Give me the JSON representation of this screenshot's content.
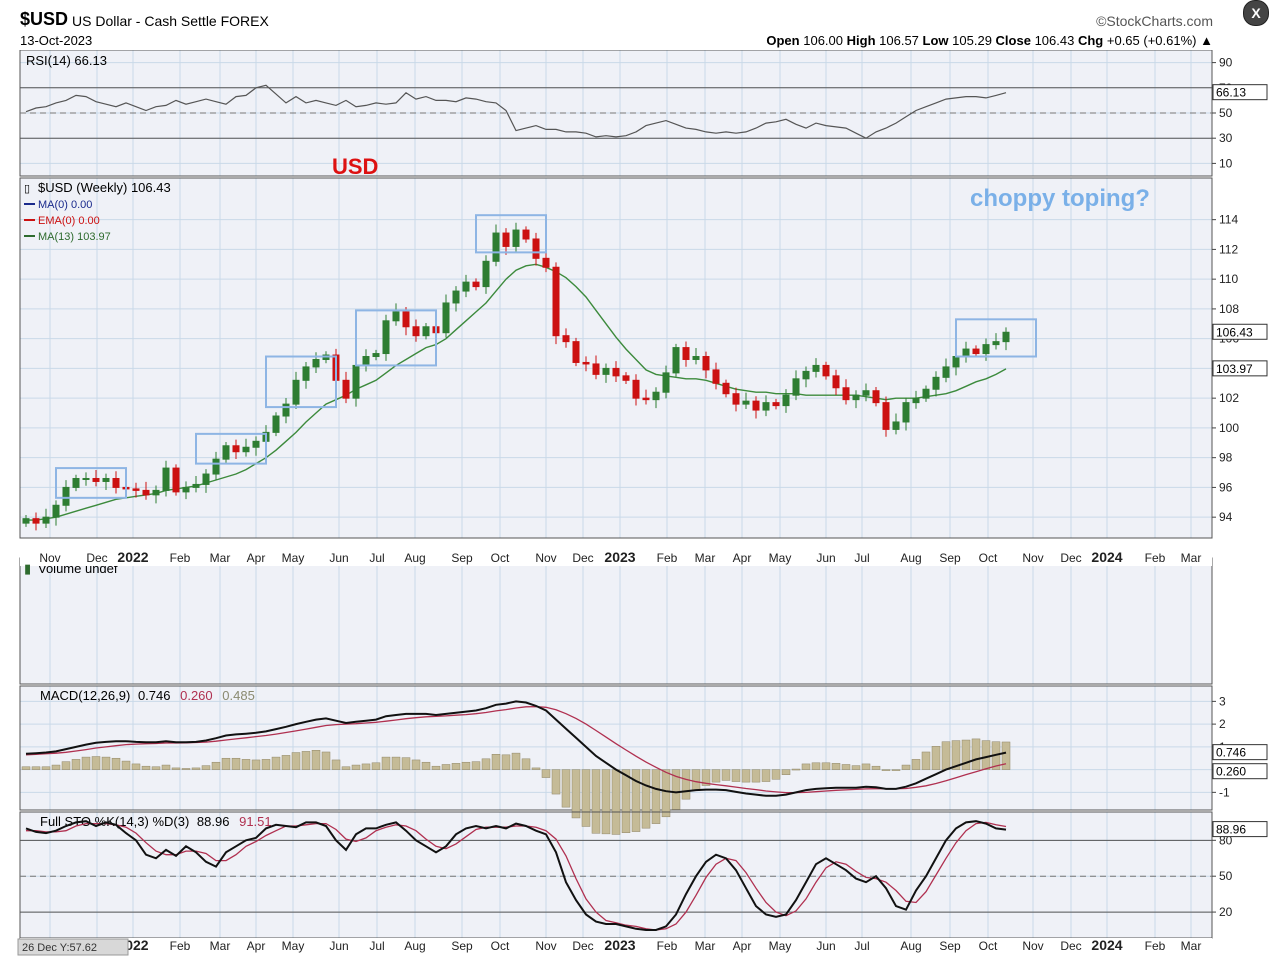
{
  "header": {
    "symbol": "$USD",
    "name": "US Dollar - Cash Settle FOREX",
    "date": "13-Oct-2023",
    "brand": "©StockCharts.com",
    "open_label": "Open",
    "open": "106.00",
    "high_label": "High",
    "high": "106.57",
    "low_label": "Low",
    "low": "105.29",
    "close_label": "Close",
    "close": "106.43",
    "chg_label": "Chg",
    "chg": "+0.65 (+0.61%)",
    "close_button": "X"
  },
  "annotations": {
    "usd": "USD",
    "choppy": "choppy toping?"
  },
  "colors": {
    "panel_bg": "#eff1f7",
    "grid": "#c9d9e8",
    "up": "#2e7d32",
    "down": "#cc1111",
    "ma13": "#3c8a3c",
    "box": "#8eb5e4",
    "annotation_blue": "#7ab0e8",
    "annotation_red": "#dd1111",
    "macd": "#111111",
    "signal": "#b03050",
    "hist": "#c5bb97"
  },
  "chart_data": [
    {
      "type": "line",
      "panel": "rsi",
      "title": "RSI(14) 66.13",
      "label": "RSI(14)",
      "last_value": "66.13",
      "yticks": [
        "90",
        "70",
        "50",
        "30",
        "10"
      ],
      "ylim": [
        0,
        100
      ],
      "values": [
        51,
        54,
        55,
        58,
        60,
        64,
        63,
        59,
        57,
        55,
        58,
        55,
        52,
        55,
        56,
        60,
        57,
        59,
        61,
        59,
        57,
        63,
        64,
        70,
        72,
        65,
        58,
        63,
        58,
        60,
        58,
        56,
        60,
        55,
        56,
        58,
        57,
        58,
        66,
        61,
        63,
        60,
        60,
        59,
        62,
        61,
        59,
        58,
        52,
        36,
        38,
        40,
        37,
        37,
        35,
        35,
        34,
        31,
        32,
        31,
        32,
        35,
        40,
        42,
        44,
        41,
        38,
        37,
        35,
        34,
        35,
        34,
        35,
        38,
        42,
        43,
        45,
        41,
        38,
        42,
        40,
        39,
        38,
        34,
        30,
        35,
        38,
        42,
        47,
        52,
        55,
        58,
        61,
        62,
        63,
        63,
        62,
        64,
        66.13
      ]
    },
    {
      "type": "candlestick",
      "panel": "price",
      "title": "$USD (Weekly) 106.43",
      "legend": [
        "$USD (Weekly) 106.43",
        "MA(0) 0.00",
        "EMA(0) 0.00",
        "MA(13) 103.97"
      ],
      "ylim": [
        92.6,
        116.8
      ],
      "yticks": [
        "114",
        "112",
        "110",
        "108",
        "106",
        "104",
        "102",
        "100",
        "98",
        "96",
        "94"
      ],
      "last_price": "106.43",
      "ma13_last": "103.97",
      "x_labels": [
        "Nov",
        "Dec",
        "2022",
        "Feb",
        "Mar",
        "Apr",
        "May",
        "Jun",
        "Jul",
        "Aug",
        "Sep",
        "Oct",
        "Nov",
        "Dec",
        "2023",
        "Feb",
        "Mar",
        "Apr",
        "May",
        "Jun",
        "Jul",
        "Aug",
        "Sep",
        "Oct",
        "Nov",
        "Dec",
        "2024",
        "Feb",
        "Mar"
      ],
      "closes": [
        93.9,
        93.6,
        94.0,
        94.8,
        96.0,
        96.6,
        96.6,
        96.4,
        96.6,
        96.0,
        95.9,
        95.8,
        95.5,
        95.8,
        97.3,
        95.7,
        96.0,
        96.2,
        96.9,
        97.9,
        98.8,
        98.4,
        98.7,
        99.1,
        99.7,
        100.8,
        101.6,
        103.2,
        104.1,
        104.6,
        104.9,
        103.2,
        102.0,
        104.2,
        104.8,
        105.0,
        107.2,
        107.8,
        106.8,
        106.2,
        106.8,
        106.4,
        108.4,
        109.2,
        109.8,
        109.5,
        111.2,
        113.1,
        112.2,
        113.3,
        112.7,
        111.4,
        110.8,
        106.2,
        105.8,
        104.4,
        104.3,
        103.6,
        104.0,
        103.5,
        103.2,
        102.0,
        101.9,
        102.4,
        103.7,
        105.4,
        104.6,
        104.8,
        103.9,
        103.0,
        102.3,
        101.6,
        101.8,
        101.2,
        101.7,
        101.5,
        102.2,
        103.3,
        103.8,
        104.2,
        103.5,
        102.7,
        101.9,
        102.2,
        102.5,
        101.7,
        99.9,
        100.4,
        101.7,
        102.0,
        102.6,
        103.4,
        104.1,
        104.8,
        105.3,
        105.0,
        105.6,
        105.8,
        106.43
      ],
      "ma13": [
        93.8,
        93.8,
        93.9,
        94.0,
        94.2,
        94.4,
        94.6,
        94.8,
        95.0,
        95.2,
        95.3,
        95.4,
        95.5,
        95.6,
        95.8,
        95.9,
        96.0,
        96.1,
        96.3,
        96.5,
        96.7,
        96.9,
        97.2,
        97.6,
        98.0,
        98.5,
        99.1,
        99.7,
        100.4,
        101.0,
        101.6,
        101.9,
        102.2,
        102.6,
        102.9,
        103.2,
        103.7,
        104.2,
        104.6,
        105.0,
        105.4,
        105.6,
        106.0,
        106.6,
        107.2,
        107.8,
        108.4,
        109.2,
        110.0,
        110.6,
        110.9,
        111.0,
        110.8,
        110.5,
        110.1,
        109.5,
        108.8,
        107.9,
        107.0,
        106.1,
        105.3,
        104.6,
        103.9,
        103.6,
        103.5,
        103.4,
        103.3,
        103.3,
        103.2,
        103.0,
        102.8,
        102.6,
        102.5,
        102.4,
        102.4,
        102.3,
        102.3,
        102.3,
        102.2,
        102.2,
        102.2,
        102.2,
        102.2,
        102.2,
        102.1,
        102.0,
        101.9,
        102.0,
        102.0,
        102.0,
        102.1,
        102.2,
        102.3,
        102.5,
        102.8,
        103.1,
        103.3,
        103.6,
        103.97
      ]
    },
    {
      "type": "bar",
      "panel": "volume",
      "title": "Volume undef"
    },
    {
      "type": "line",
      "panel": "macd",
      "title": "MACD(12,26,9) 0.746, 0.260, 0.485",
      "label": "MACD(12,26,9)",
      "macd_value": "0.746",
      "signal_value": "0.260",
      "hist_value": "0.485",
      "yticks": [
        "3",
        "2",
        "1",
        "0",
        "-1"
      ],
      "ylim": [
        -1.6,
        3.5
      ],
      "last_macd": "0.746",
      "last_signal": "0.260",
      "macd": [
        0.7,
        0.72,
        0.75,
        0.8,
        0.9,
        1.0,
        1.1,
        1.18,
        1.22,
        1.25,
        1.25,
        1.22,
        1.2,
        1.2,
        1.25,
        1.2,
        1.2,
        1.22,
        1.28,
        1.38,
        1.5,
        1.55,
        1.58,
        1.62,
        1.68,
        1.78,
        1.88,
        2.0,
        2.1,
        2.2,
        2.25,
        2.15,
        2.05,
        2.1,
        2.15,
        2.2,
        2.35,
        2.4,
        2.45,
        2.45,
        2.45,
        2.4,
        2.45,
        2.5,
        2.55,
        2.6,
        2.7,
        2.85,
        2.9,
        3.0,
        2.95,
        2.8,
        2.6,
        2.2,
        1.8,
        1.4,
        1.0,
        0.6,
        0.3,
        0.0,
        -0.25,
        -0.5,
        -0.7,
        -0.85,
        -0.95,
        -1.0,
        -0.95,
        -0.9,
        -0.88,
        -0.88,
        -0.9,
        -0.98,
        -1.05,
        -1.1,
        -1.15,
        -1.15,
        -1.1,
        -1.0,
        -0.9,
        -0.85,
        -0.82,
        -0.8,
        -0.8,
        -0.8,
        -0.75,
        -0.78,
        -0.85,
        -0.85,
        -0.75,
        -0.6,
        -0.4,
        -0.2,
        0.0,
        0.15,
        0.3,
        0.45,
        0.55,
        0.65,
        0.746
      ],
      "signal": [
        0.65,
        0.67,
        0.7,
        0.72,
        0.76,
        0.82,
        0.88,
        0.95,
        1.0,
        1.05,
        1.1,
        1.12,
        1.14,
        1.15,
        1.17,
        1.17,
        1.18,
        1.19,
        1.21,
        1.25,
        1.3,
        1.35,
        1.4,
        1.45,
        1.5,
        1.56,
        1.63,
        1.7,
        1.78,
        1.86,
        1.94,
        1.98,
        2.0,
        2.02,
        2.05,
        2.08,
        2.13,
        2.18,
        2.24,
        2.28,
        2.32,
        2.34,
        2.36,
        2.39,
        2.42,
        2.46,
        2.51,
        2.58,
        2.64,
        2.71,
        2.76,
        2.77,
        2.74,
        2.63,
        2.46,
        2.25,
        2.0,
        1.72,
        1.43,
        1.14,
        0.86,
        0.59,
        0.33,
        0.1,
        -0.12,
        -0.3,
        -0.43,
        -0.53,
        -0.6,
        -0.66,
        -0.71,
        -0.77,
        -0.83,
        -0.88,
        -0.94,
        -0.98,
        -1.01,
        -1.01,
        -1.0,
        -0.97,
        -0.94,
        -0.91,
        -0.89,
        -0.87,
        -0.85,
        -0.84,
        -0.84,
        -0.84,
        -0.83,
        -0.78,
        -0.71,
        -0.61,
        -0.49,
        -0.36,
        -0.22,
        -0.09,
        0.04,
        0.16,
        0.26
      ]
    },
    {
      "type": "line",
      "panel": "stochastic",
      "title": "Full STO %K(14,3) %D(3) 88.96, 91.51",
      "label": "Full STO %K(14,3) %D(3)",
      "k_value": "88.96",
      "d_value": "91.51",
      "yticks": [
        "80",
        "50",
        "20"
      ],
      "ylim": [
        0,
        102
      ],
      "last_k": "88.96",
      "status": "26 Dec Y:57.62",
      "k": [
        90,
        87,
        86,
        88,
        92,
        95,
        96,
        92,
        95,
        93,
        86,
        80,
        68,
        65,
        72,
        67,
        75,
        70,
        62,
        58,
        70,
        75,
        80,
        82,
        90,
        93,
        92,
        91,
        95,
        95,
        92,
        80,
        72,
        85,
        90,
        90,
        93,
        95,
        88,
        80,
        75,
        70,
        75,
        85,
        90,
        92,
        90,
        92,
        90,
        94,
        92,
        88,
        85,
        70,
        45,
        30,
        18,
        12,
        10,
        10,
        8,
        6,
        5,
        5,
        8,
        18,
        35,
        50,
        62,
        68,
        65,
        55,
        40,
        25,
        18,
        16,
        18,
        30,
        45,
        60,
        65,
        60,
        55,
        48,
        45,
        50,
        40,
        25,
        22,
        38,
        50,
        65,
        80,
        90,
        95,
        96,
        94,
        90,
        88.96
      ],
      "d": [
        88,
        88,
        87,
        87,
        88,
        92,
        94,
        94,
        94,
        93,
        91,
        86,
        78,
        71,
        68,
        68,
        71,
        71,
        69,
        63,
        63,
        68,
        75,
        79,
        84,
        88,
        92,
        92,
        93,
        94,
        94,
        89,
        81,
        79,
        82,
        88,
        91,
        93,
        92,
        88,
        81,
        75,
        73,
        77,
        83,
        89,
        91,
        91,
        91,
        92,
        92,
        91,
        88,
        81,
        67,
        48,
        31,
        20,
        13,
        11,
        9,
        8,
        6,
        5,
        6,
        10,
        20,
        34,
        49,
        60,
        65,
        63,
        53,
        40,
        28,
        20,
        17,
        21,
        31,
        45,
        57,
        62,
        60,
        54,
        49,
        48,
        45,
        38,
        29,
        28,
        37,
        51,
        65,
        78,
        88,
        94,
        95,
        93,
        91.51
      ]
    }
  ]
}
